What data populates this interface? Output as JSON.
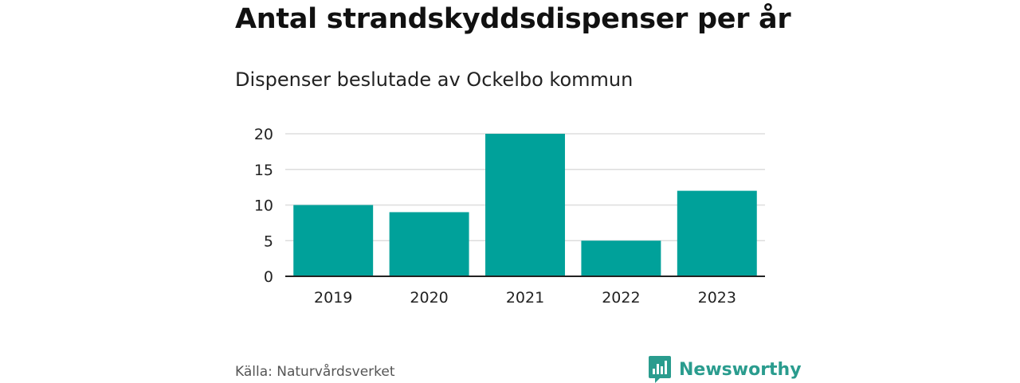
{
  "header": {
    "title": "Antal strandskyddsdispenser per år",
    "subtitle": "Dispenser beslutade av Ockelbo kommun"
  },
  "footer": {
    "source": "Källa: Naturvårdsverket",
    "brand_name": "Newsworthy",
    "brand_icon": "bar-chart-bubble-icon",
    "brand_color": "#2a9c8e"
  },
  "chart_data": {
    "type": "bar",
    "title": "Antal strandskyddsdispenser per år",
    "subtitle": "Dispenser beslutade av Ockelbo kommun",
    "categories": [
      "2019",
      "2020",
      "2021",
      "2022",
      "2023"
    ],
    "values": [
      10,
      9,
      20,
      5,
      12
    ],
    "xlabel": "",
    "ylabel": "",
    "ylim": [
      0,
      20
    ],
    "yticks": [
      0,
      5,
      10,
      15,
      20
    ],
    "grid": true,
    "bar_color": "#00a19a",
    "gridline_color": "#dddddd",
    "axis_color": "#222222"
  }
}
